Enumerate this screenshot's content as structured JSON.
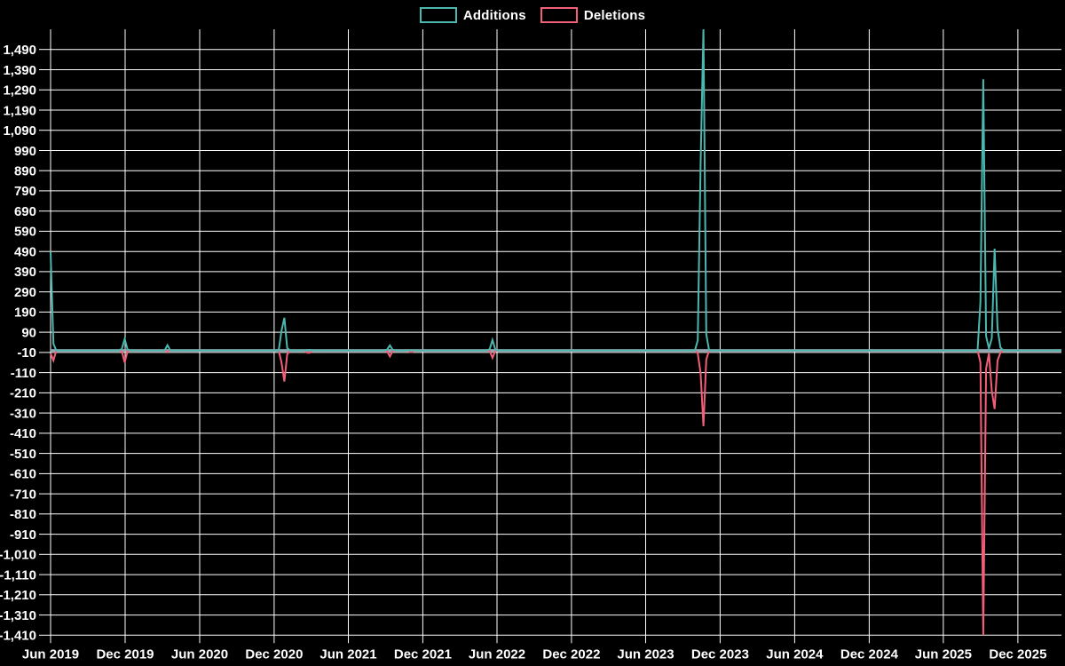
{
  "legend": {
    "items": [
      {
        "label": "Additions",
        "color": "#4bb8b0"
      },
      {
        "label": "Deletions",
        "color": "#f25f78"
      }
    ]
  },
  "colors": {
    "background": "#000000",
    "grid": "#ffffff",
    "axis_text": "#ffffff",
    "zero_baseline": "#8fa7b3",
    "additions": "#4bb8b0",
    "deletions": "#f25f78"
  },
  "chart_data": {
    "type": "line",
    "title": "",
    "xlabel": "",
    "ylabel": "",
    "legend_position": "top-center",
    "grid": true,
    "x_axis": {
      "domain_start": "2019-06-01",
      "domain_end": "2026-03-18",
      "ticks": [
        {
          "label": "Jun 2019",
          "date": "2019-06-01"
        },
        {
          "label": "Dec 2019",
          "date": "2019-12-01"
        },
        {
          "label": "Jun 2020",
          "date": "2020-06-01"
        },
        {
          "label": "Dec 2020",
          "date": "2020-12-01"
        },
        {
          "label": "Jun 2021",
          "date": "2021-06-01"
        },
        {
          "label": "Dec 2021",
          "date": "2021-12-01"
        },
        {
          "label": "Jun 2022",
          "date": "2022-06-01"
        },
        {
          "label": "Dec 2022",
          "date": "2022-12-01"
        },
        {
          "label": "Jun 2023",
          "date": "2023-06-01"
        },
        {
          "label": "Dec 2023",
          "date": "2023-12-01"
        },
        {
          "label": "Jun 2024",
          "date": "2024-06-01"
        },
        {
          "label": "Dec 2024",
          "date": "2024-12-01"
        },
        {
          "label": "Jun 2025",
          "date": "2025-06-01"
        },
        {
          "label": "Dec 2025",
          "date": "2025-12-01"
        }
      ]
    },
    "y_axis": {
      "min": -1410,
      "max": 1590,
      "grid_step": 100,
      "ticks": [
        {
          "value": -1410,
          "label": "-1,410"
        },
        {
          "value": -1310,
          "label": "-1,310"
        },
        {
          "value": -1210,
          "label": "-1,210"
        },
        {
          "value": -1110,
          "label": "-1,110"
        },
        {
          "value": -1010,
          "label": "-1,010"
        },
        {
          "value": -910,
          "label": "-910"
        },
        {
          "value": -810,
          "label": "-810"
        },
        {
          "value": -710,
          "label": "-710"
        },
        {
          "value": -610,
          "label": "-610"
        },
        {
          "value": -510,
          "label": "-510"
        },
        {
          "value": -410,
          "label": "-410"
        },
        {
          "value": -310,
          "label": "-310"
        },
        {
          "value": -210,
          "label": "-210"
        },
        {
          "value": -110,
          "label": "-110"
        },
        {
          "value": -10,
          "label": "-10"
        },
        {
          "value": 90,
          "label": "90"
        },
        {
          "value": 190,
          "label": "190"
        },
        {
          "value": 290,
          "label": "290"
        },
        {
          "value": 390,
          "label": "390"
        },
        {
          "value": 490,
          "label": "490"
        },
        {
          "value": 590,
          "label": "590"
        },
        {
          "value": 690,
          "label": "690"
        },
        {
          "value": 790,
          "label": "790"
        },
        {
          "value": 890,
          "label": "890"
        },
        {
          "value": 990,
          "label": "990"
        },
        {
          "value": 1090,
          "label": "1,090"
        },
        {
          "value": 1190,
          "label": "1,190"
        },
        {
          "value": 1290,
          "label": "1,290"
        },
        {
          "value": 1390,
          "label": "1,390"
        },
        {
          "value": 1490,
          "label": "1,490"
        }
      ]
    },
    "baseline": 0,
    "series": [
      {
        "name": "Additions",
        "color": "#4bb8b0",
        "points": [
          [
            "2019-06-01",
            490
          ],
          [
            "2019-06-08",
            33
          ],
          [
            "2019-06-15",
            0
          ],
          [
            "2019-11-16",
            0
          ],
          [
            "2019-11-23",
            8
          ],
          [
            "2019-11-30",
            57
          ],
          [
            "2019-12-07",
            5
          ],
          [
            "2019-12-14",
            0
          ],
          [
            "2020-03-07",
            0
          ],
          [
            "2020-03-14",
            26
          ],
          [
            "2020-03-21",
            0
          ],
          [
            "2020-12-12",
            0
          ],
          [
            "2020-12-19",
            97
          ],
          [
            "2020-12-26",
            162
          ],
          [
            "2021-01-02",
            12
          ],
          [
            "2021-01-09",
            0
          ],
          [
            "2021-02-13",
            0
          ],
          [
            "2021-02-20",
            2
          ],
          [
            "2021-02-27",
            2
          ],
          [
            "2021-03-06",
            0
          ],
          [
            "2021-08-28",
            0
          ],
          [
            "2021-09-04",
            4
          ],
          [
            "2021-09-11",
            25
          ],
          [
            "2021-09-18",
            3
          ],
          [
            "2021-09-25",
            0
          ],
          [
            "2021-10-23",
            0
          ],
          [
            "2021-10-30",
            0
          ],
          [
            "2021-11-06",
            0
          ],
          [
            "2021-11-13",
            0
          ],
          [
            "2022-05-07",
            0
          ],
          [
            "2022-05-14",
            6
          ],
          [
            "2022-05-21",
            52
          ],
          [
            "2022-05-28",
            4
          ],
          [
            "2022-06-04",
            0
          ],
          [
            "2023-09-30",
            0
          ],
          [
            "2023-10-07",
            50
          ],
          [
            "2023-10-14",
            920
          ],
          [
            "2023-10-21",
            1590
          ],
          [
            "2023-10-28",
            80
          ],
          [
            "2023-11-04",
            0
          ],
          [
            "2025-08-24",
            0
          ],
          [
            "2025-08-31",
            240
          ],
          [
            "2025-09-07",
            1343
          ],
          [
            "2025-09-14",
            70
          ],
          [
            "2025-09-21",
            10
          ],
          [
            "2025-09-28",
            60
          ],
          [
            "2025-10-05",
            504
          ],
          [
            "2025-10-12",
            108
          ],
          [
            "2025-10-19",
            15
          ],
          [
            "2025-10-26",
            0
          ],
          [
            "2026-03-18",
            0
          ]
        ]
      },
      {
        "name": "Deletions",
        "color": "#f25f78",
        "points": [
          [
            "2019-06-01",
            -15
          ],
          [
            "2019-06-08",
            -50
          ],
          [
            "2019-06-15",
            0
          ],
          [
            "2019-11-16",
            0
          ],
          [
            "2019-11-23",
            -5
          ],
          [
            "2019-11-30",
            -60
          ],
          [
            "2019-12-07",
            -4
          ],
          [
            "2019-12-14",
            0
          ],
          [
            "2020-03-07",
            0
          ],
          [
            "2020-03-14",
            -6
          ],
          [
            "2020-03-21",
            0
          ],
          [
            "2020-12-12",
            0
          ],
          [
            "2020-12-19",
            -60
          ],
          [
            "2020-12-26",
            -154
          ],
          [
            "2021-01-02",
            -20
          ],
          [
            "2021-01-09",
            0
          ],
          [
            "2021-02-13",
            0
          ],
          [
            "2021-02-20",
            -12
          ],
          [
            "2021-02-27",
            -12
          ],
          [
            "2021-03-06",
            0
          ],
          [
            "2021-08-28",
            0
          ],
          [
            "2021-09-04",
            -4
          ],
          [
            "2021-09-11",
            -30
          ],
          [
            "2021-09-18",
            -3
          ],
          [
            "2021-09-25",
            0
          ],
          [
            "2021-10-23",
            0
          ],
          [
            "2021-10-30",
            -8
          ],
          [
            "2021-11-06",
            -8
          ],
          [
            "2021-11-13",
            0
          ],
          [
            "2022-05-07",
            0
          ],
          [
            "2022-05-14",
            -3
          ],
          [
            "2022-05-21",
            -37
          ],
          [
            "2022-05-28",
            -2
          ],
          [
            "2022-06-04",
            0
          ],
          [
            "2023-09-30",
            0
          ],
          [
            "2023-10-07",
            -15
          ],
          [
            "2023-10-14",
            -112
          ],
          [
            "2023-10-21",
            -375
          ],
          [
            "2023-10-28",
            -45
          ],
          [
            "2023-11-04",
            0
          ],
          [
            "2025-08-24",
            0
          ],
          [
            "2025-08-31",
            -60
          ],
          [
            "2025-09-07",
            -1410
          ],
          [
            "2025-09-14",
            -90
          ],
          [
            "2025-09-21",
            -15
          ],
          [
            "2025-09-28",
            -200
          ],
          [
            "2025-10-05",
            -290
          ],
          [
            "2025-10-12",
            -50
          ],
          [
            "2025-10-19",
            -12
          ],
          [
            "2025-10-26",
            0
          ],
          [
            "2026-03-18",
            0
          ]
        ]
      }
    ]
  }
}
